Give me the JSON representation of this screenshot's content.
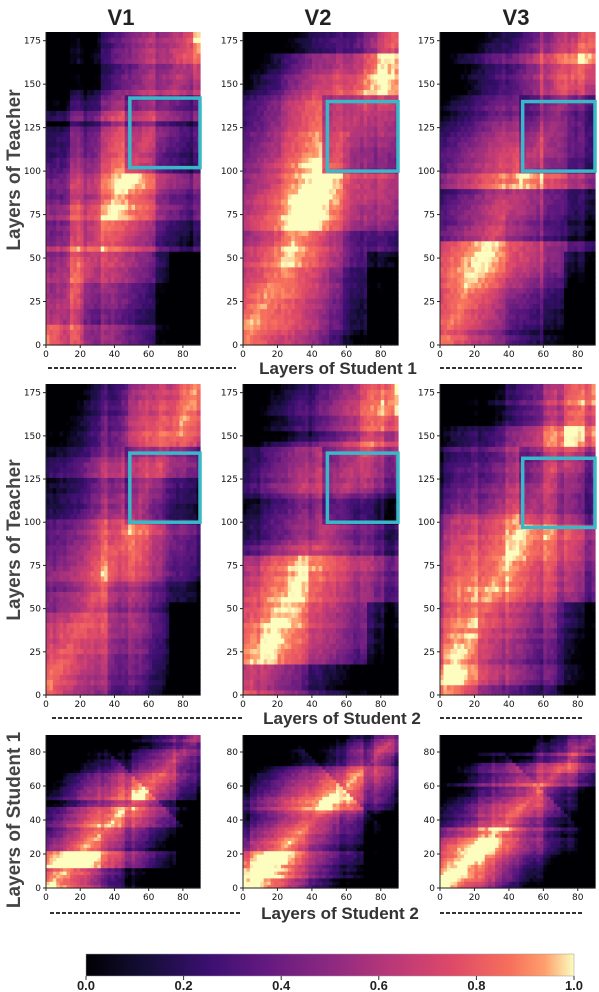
{
  "chart_data": {
    "type": "heatmap",
    "figure": {
      "column_titles": [
        "V1",
        "V2",
        "V3"
      ],
      "row_ylabels": [
        "Layers of Teacher",
        "Layers of Teacher",
        "Layers of Student 1"
      ],
      "row_xlabels": [
        "Layers of Student 1",
        "Layers of Student 2",
        "Layers of Student 2"
      ],
      "colormap": "magma",
      "colorbar": {
        "min": 0.0,
        "max": 1.0,
        "ticks": [
          "0.0",
          "0.2",
          "0.4",
          "0.6",
          "0.8",
          "1.0"
        ]
      },
      "highlight_color": "#3ab8c8"
    },
    "panels": [
      {
        "row": 0,
        "col": 0,
        "ylabel": "Layers of Teacher",
        "xlabel": "Layers of Student 1",
        "xlim": [
          0,
          90
        ],
        "ylim": [
          0,
          180
        ],
        "xticks": [
          0,
          20,
          40,
          60,
          80
        ],
        "yticks": [
          0,
          25,
          50,
          75,
          100,
          125,
          150,
          175
        ],
        "highlight_box": {
          "x": [
            49,
            90
          ],
          "y": [
            102,
            142
          ]
        }
      },
      {
        "row": 0,
        "col": 1,
        "ylabel": "Layers of Teacher",
        "xlabel": "Layers of Student 1",
        "xlim": [
          0,
          90
        ],
        "ylim": [
          0,
          180
        ],
        "xticks": [
          0,
          20,
          40,
          60,
          80
        ],
        "yticks": [
          0,
          25,
          50,
          75,
          100,
          125,
          150,
          175
        ],
        "highlight_box": {
          "x": [
            49,
            90
          ],
          "y": [
            100,
            140
          ]
        }
      },
      {
        "row": 0,
        "col": 2,
        "ylabel": "Layers of Teacher",
        "xlabel": "Layers of Student 1",
        "xlim": [
          0,
          90
        ],
        "ylim": [
          0,
          180
        ],
        "xticks": [
          0,
          20,
          40,
          60,
          80
        ],
        "yticks": [
          0,
          25,
          50,
          75,
          100,
          125,
          150,
          175
        ],
        "highlight_box": {
          "x": [
            48,
            90
          ],
          "y": [
            100,
            140
          ]
        }
      },
      {
        "row": 1,
        "col": 0,
        "ylabel": "Layers of Teacher",
        "xlabel": "Layers of Student 2",
        "xlim": [
          0,
          90
        ],
        "ylim": [
          0,
          180
        ],
        "xticks": [
          0,
          20,
          40,
          60,
          80
        ],
        "yticks": [
          0,
          25,
          50,
          75,
          100,
          125,
          150,
          175
        ],
        "highlight_box": {
          "x": [
            49,
            90
          ],
          "y": [
            100,
            140
          ]
        }
      },
      {
        "row": 1,
        "col": 1,
        "ylabel": "Layers of Teacher",
        "xlabel": "Layers of Student 2",
        "xlim": [
          0,
          90
        ],
        "ylim": [
          0,
          180
        ],
        "xticks": [
          0,
          20,
          40,
          60,
          80
        ],
        "yticks": [
          0,
          25,
          50,
          75,
          100,
          125,
          150,
          175
        ],
        "highlight_box": {
          "x": [
            49,
            90
          ],
          "y": [
            100,
            140
          ]
        }
      },
      {
        "row": 1,
        "col": 2,
        "ylabel": "Layers of Teacher",
        "xlabel": "Layers of Student 2",
        "xlim": [
          0,
          90
        ],
        "ylim": [
          0,
          180
        ],
        "xticks": [
          0,
          20,
          40,
          60,
          80
        ],
        "yticks": [
          0,
          25,
          50,
          75,
          100,
          125,
          150,
          175
        ],
        "highlight_box": {
          "x": [
            48,
            90
          ],
          "y": [
            97,
            137
          ]
        }
      },
      {
        "row": 2,
        "col": 0,
        "ylabel": "Layers of Student 1",
        "xlabel": "Layers of Student 2",
        "xlim": [
          0,
          90
        ],
        "ylim": [
          0,
          90
        ],
        "xticks": [
          0,
          20,
          40,
          60,
          80
        ],
        "yticks": [
          0,
          20,
          40,
          60,
          80
        ],
        "highlight_box": null
      },
      {
        "row": 2,
        "col": 1,
        "ylabel": "Layers of Student 1",
        "xlabel": "Layers of Student 2",
        "xlim": [
          0,
          90
        ],
        "ylim": [
          0,
          90
        ],
        "xticks": [
          0,
          20,
          40,
          60,
          80
        ],
        "yticks": [
          0,
          20,
          40,
          60,
          80
        ],
        "highlight_box": null
      },
      {
        "row": 2,
        "col": 2,
        "ylabel": "Layers of Student 1",
        "xlabel": "Layers of Student 2",
        "xlim": [
          0,
          90
        ],
        "ylim": [
          0,
          90
        ],
        "xticks": [
          0,
          20,
          40,
          60,
          80
        ],
        "yticks": [
          0,
          20,
          40,
          60,
          80
        ],
        "highlight_box": null
      }
    ]
  }
}
